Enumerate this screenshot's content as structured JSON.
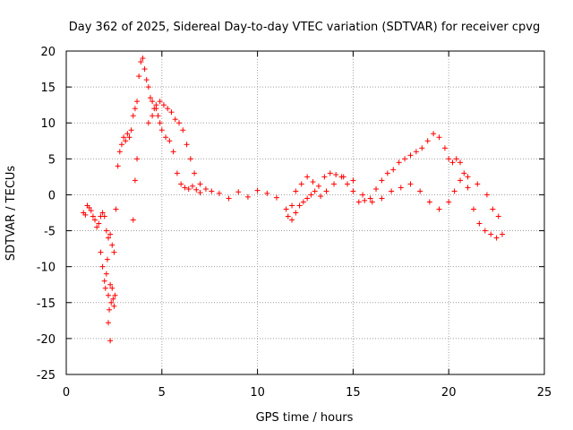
{
  "chart_data": {
    "type": "scatter",
    "title": "Day 362 of 2025, Sidereal Day-to-day VTEC variation (SDTVAR) for receiver cpvg",
    "xlabel": "GPS time / hours",
    "ylabel": "SDTVAR / TECUs",
    "xlim": [
      0,
      25
    ],
    "ylim": [
      -25,
      20
    ],
    "xticks": [
      0,
      5,
      10,
      15,
      20,
      25
    ],
    "yticks": [
      -25,
      -20,
      -15,
      -10,
      -5,
      0,
      5,
      10,
      15,
      20
    ],
    "xtick_labels": [
      "0",
      "5",
      "10",
      "15",
      "20",
      "25"
    ],
    "ytick_labels": [
      "-25",
      "-20",
      "-15",
      "-10",
      "-5",
      "0",
      "5",
      "10",
      "15",
      "20"
    ],
    "grid": true,
    "marker": "plus",
    "color": "#ff0000",
    "series": [
      {
        "name": "main",
        "x": [
          0.9,
          1.0,
          1.1,
          1.2,
          1.3,
          1.4,
          1.5,
          1.6,
          1.7,
          1.8,
          1.9,
          2.0,
          2.1,
          2.2,
          2.3,
          2.4,
          2.5,
          2.6,
          2.7,
          2.8,
          2.9,
          3.0,
          3.1,
          3.2,
          3.3,
          3.4,
          3.5,
          3.6,
          3.7,
          3.8,
          3.9,
          4.0,
          4.1,
          4.2,
          4.3,
          4.4,
          4.5,
          4.6,
          4.7,
          4.8,
          4.9,
          5.0,
          5.2,
          5.4,
          5.6,
          5.8,
          6.0,
          6.2,
          6.4,
          6.6,
          6.8,
          7.0,
          7.3,
          7.6,
          8.0,
          8.5,
          9.0,
          9.5,
          10.0,
          10.5,
          11.0,
          11.5,
          11.8,
          12.0,
          12.3,
          12.6,
          12.9,
          13.2,
          13.5,
          13.8,
          14.1,
          14.4,
          14.7,
          15.0,
          15.3,
          15.6,
          15.9,
          16.2,
          16.5,
          16.8,
          17.1,
          17.4,
          17.7,
          18.0,
          18.3,
          18.6,
          18.9,
          19.2,
          19.5,
          19.8,
          20.0,
          20.2,
          20.4,
          20.6,
          20.8,
          21.0,
          21.3,
          21.6,
          21.9,
          22.2,
          22.5,
          22.8
        ],
        "y": [
          -2.5,
          -2.8,
          -1.5,
          -1.8,
          -2.2,
          -3.0,
          -3.5,
          -4.5,
          -4.0,
          -3.0,
          -2.5,
          -3.0,
          -5.0,
          -6.0,
          -5.5,
          -7.0,
          -8.0,
          -2.0,
          4.0,
          6.0,
          7.0,
          8.0,
          7.5,
          8.5,
          8.0,
          9.0,
          11.0,
          12.0,
          13.0,
          16.5,
          18.5,
          19.0,
          17.5,
          16.0,
          15.0,
          13.5,
          13.0,
          12.0,
          12.0,
          11.0,
          10.0,
          9.0,
          8.0,
          7.5,
          6.0,
          3.0,
          1.5,
          1.0,
          0.8,
          1.2,
          0.7,
          0.3,
          0.8,
          0.5,
          0.2,
          -0.5,
          0.4,
          -0.3,
          0.6,
          0.2,
          -0.4,
          -2.0,
          -1.5,
          0.5,
          1.5,
          2.5,
          1.8,
          1.2,
          2.5,
          3.0,
          2.8,
          2.5,
          1.5,
          0.5,
          -1.0,
          -0.8,
          -0.5,
          0.8,
          2.0,
          3.0,
          3.5,
          4.5,
          5.0,
          5.5,
          6.0,
          6.5,
          7.5,
          8.5,
          8.0,
          6.5,
          5.0,
          4.5,
          5.0,
          4.5,
          3.0,
          1.0,
          -2.0,
          -4.0,
          -5.0,
          -5.5,
          -6.0,
          -5.5
        ]
      },
      {
        "name": "secondary",
        "x": [
          1.8,
          1.9,
          2.0,
          2.05,
          2.1,
          2.15,
          2.2,
          2.25,
          2.3,
          2.35,
          2.4,
          2.45,
          2.5,
          2.55,
          2.2,
          2.3,
          3.5,
          3.6,
          3.7,
          4.3,
          4.5,
          4.7,
          4.9,
          5.1,
          5.3,
          5.5,
          5.7,
          5.9,
          6.1,
          6.3,
          6.5,
          6.7,
          7.0,
          11.6,
          11.8,
          12.0,
          12.2,
          12.4,
          12.6,
          12.8,
          13.0,
          13.3,
          13.6,
          14.0,
          14.5,
          15.0,
          15.5,
          16.0,
          16.5,
          17.0,
          17.5,
          18.0,
          18.5,
          19.0,
          19.5,
          20.0,
          20.3,
          20.6,
          21.0,
          21.5,
          22.0,
          22.3,
          22.6
        ],
        "y": [
          -8.0,
          -10.0,
          -12.0,
          -13.0,
          -11.0,
          -9.0,
          -14.0,
          -16.0,
          -12.5,
          -15.0,
          -13.0,
          -14.5,
          -15.5,
          -14.0,
          -17.8,
          -20.3,
          -3.5,
          2.0,
          5.0,
          10.0,
          11.0,
          12.5,
          13.0,
          12.5,
          12.0,
          11.5,
          10.5,
          10.0,
          9.0,
          7.0,
          5.0,
          3.0,
          1.5,
          -3.0,
          -3.5,
          -2.5,
          -1.5,
          -1.0,
          -0.5,
          0.0,
          0.5,
          -0.2,
          0.5,
          1.5,
          2.5,
          2.0,
          0.0,
          -1.0,
          -0.5,
          0.5,
          1.0,
          1.5,
          0.5,
          -1.0,
          -2.0,
          -1.0,
          0.5,
          2.0,
          2.5,
          1.5,
          0.0,
          -2.0,
          -3.0
        ]
      }
    ]
  }
}
